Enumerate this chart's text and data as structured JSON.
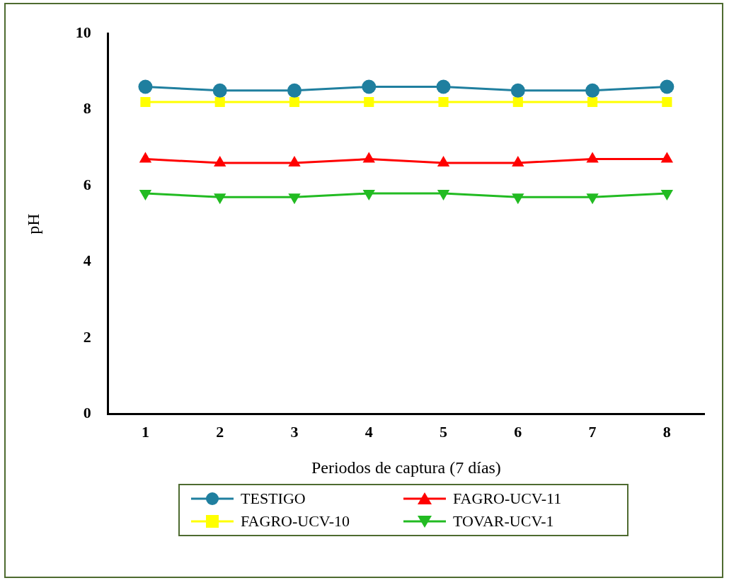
{
  "chart_data": {
    "type": "line",
    "xlabel": "Periodos de captura (7 días)",
    "ylabel": "pH",
    "categories": [
      "1",
      "2",
      "3",
      "4",
      "5",
      "6",
      "7",
      "8"
    ],
    "series": [
      {
        "name": "TESTIGO",
        "color": "#1f7f9f",
        "marker": "circle",
        "values": [
          8.6,
          8.5,
          8.5,
          8.6,
          8.6,
          8.5,
          8.5,
          8.6
        ]
      },
      {
        "name": "FAGRO-UCV-11",
        "color": "#ff0000",
        "marker": "triangle",
        "values": [
          6.7,
          6.6,
          6.6,
          6.7,
          6.6,
          6.6,
          6.7,
          6.7
        ]
      },
      {
        "name": "FAGRO-UCV-10",
        "color": "#ffff00",
        "marker": "square",
        "values": [
          8.2,
          8.2,
          8.2,
          8.2,
          8.2,
          8.2,
          8.2,
          8.2
        ]
      },
      {
        "name": "TOVAR-UCV-1",
        "color": "#22bb22",
        "marker": "triangle-down",
        "values": [
          5.8,
          5.7,
          5.7,
          5.8,
          5.8,
          5.7,
          5.7,
          5.8
        ]
      }
    ],
    "ylim": [
      0,
      10
    ],
    "yticks": [
      0,
      2,
      4,
      6,
      8,
      10
    ],
    "grid": false,
    "legend": "bottom",
    "line_style": "solid"
  }
}
